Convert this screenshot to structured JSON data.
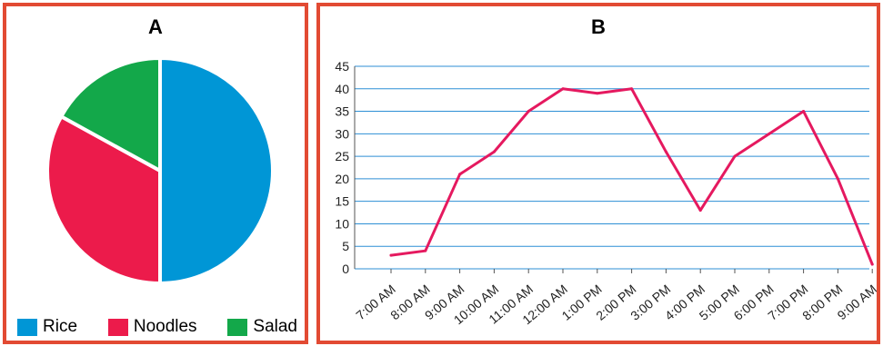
{
  "colors": {
    "frame": "#e24a33",
    "rice": "#0096d6",
    "noodles": "#ec1b4b",
    "salad": "#13a84a",
    "gridline": "#2d8fd5",
    "line": "#e5195f"
  },
  "chart_data": [
    {
      "type": "pie",
      "title": "A",
      "labels": [
        "Rice",
        "Noodles",
        "Salad"
      ],
      "values": [
        50,
        33,
        17
      ],
      "legend_position": "bottom"
    },
    {
      "type": "line",
      "title": "B",
      "categories": [
        "7:00 AM",
        "8:00 AM",
        "9:00 AM",
        "10:00 AM",
        "11:00 AM",
        "12:00 AM",
        "1:00 PM",
        "2:00 PM",
        "3:00 PM",
        "4:00 PM",
        "5:00 PM",
        "6:00 PM",
        "7:00 PM",
        "8:00 PM",
        "9:00 AM"
      ],
      "values": [
        3,
        4,
        21,
        26,
        35,
        40,
        39,
        40,
        26,
        13,
        25,
        30,
        35,
        20,
        1
      ],
      "yticks": [
        "0",
        "5",
        "10",
        "15",
        "20",
        "25",
        "30",
        "35",
        "40",
        "45"
      ],
      "ylim": [
        0,
        45
      ],
      "grid": true
    }
  ]
}
